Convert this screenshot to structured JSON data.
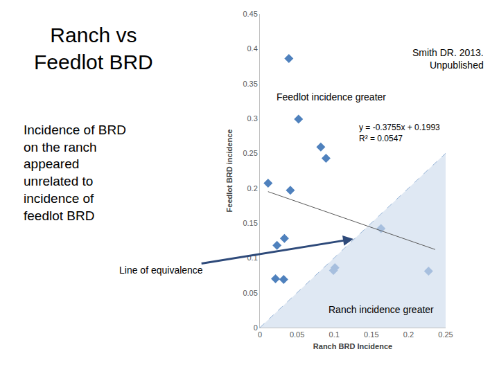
{
  "chart_data": {
    "type": "scatter",
    "title": "Ranch vs\nFeedlot BRD",
    "subtitle": "Incidence of BRD\non the ranch\nappeared\nunrelated to\nincidence of\nfeedlot BRD",
    "x_label": "Ranch BRD Incidence",
    "y_label": "Feedlot BRD incidence",
    "xlim": [
      0,
      0.25
    ],
    "xticks": [
      0,
      0.05,
      0.1,
      0.15,
      0.2,
      0.25
    ],
    "ylim": [
      0,
      0.45
    ],
    "yticks": [
      0,
      0.05,
      0.1,
      0.15,
      0.2,
      0.25,
      0.3,
      0.35,
      0.4,
      0.45
    ],
    "grid": false,
    "series": [
      {
        "type": "area",
        "color": "#95b3d7",
        "line_style": "dashed",
        "x": [
          0,
          0.25
        ],
        "values": [
          0,
          0.25
        ]
      },
      {
        "type": "scatter",
        "color": "#4f81bd",
        "marker": "diamond",
        "x": [
          0.039,
          0.052,
          0.082,
          0.089,
          0.011,
          0.041,
          0.033,
          0.023,
          0.021,
          0.032
        ],
        "values": [
          0.386,
          0.299,
          0.259,
          0.243,
          0.207,
          0.197,
          0.128,
          0.118,
          0.07,
          0.069
        ]
      },
      {
        "type": "scatter",
        "color": "#a7bfde",
        "marker": "diamond",
        "x": [
          0.163,
          0.101,
          0.099,
          0.227
        ],
        "values": [
          0.142,
          0.086,
          0.082,
          0.081
        ]
      },
      {
        "type": "line",
        "color": "#595959",
        "line_style": "solid",
        "x": [
          0.011,
          0.236
        ],
        "values": [
          0.195,
          0.112
        ]
      }
    ],
    "annotations": [
      {
        "text": "Smith DR. 2013.\nUnpublished"
      },
      {
        "text": "Feedlot incidence greater"
      },
      {
        "text": "y = -0.3755x + 0.1993\nR² = 0.0547"
      },
      {
        "text": "Ranch incidence greater"
      },
      {
        "text": "Line of equivalence"
      }
    ]
  }
}
